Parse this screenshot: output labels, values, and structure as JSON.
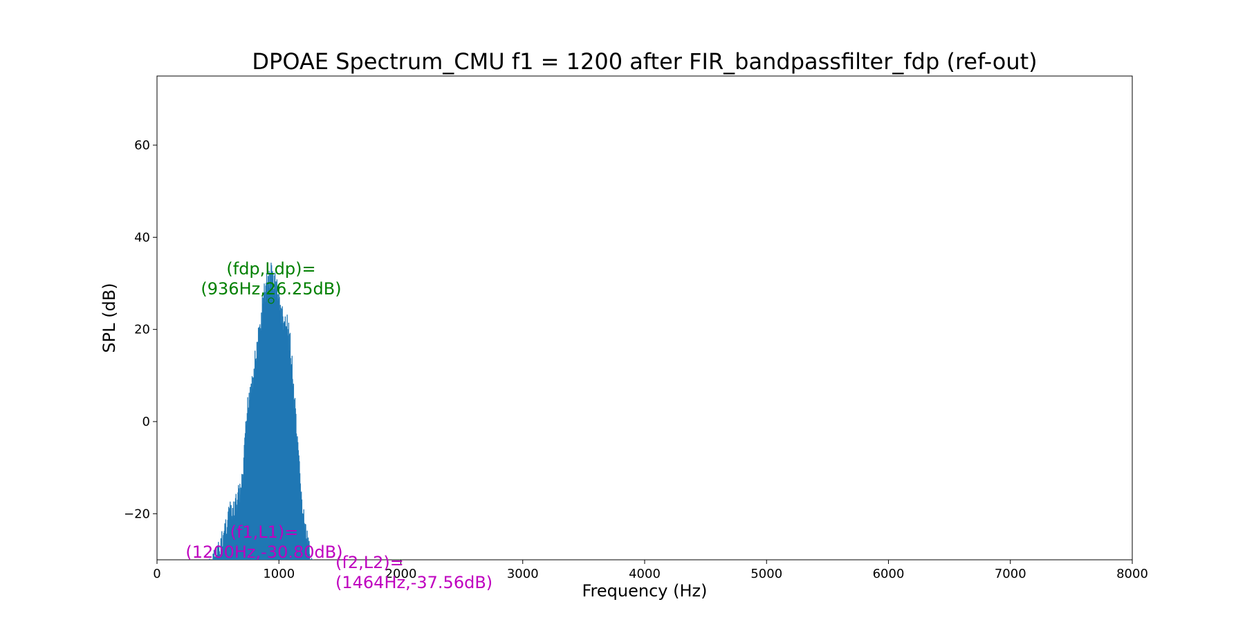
{
  "chart_data": {
    "type": "line",
    "title": "DPOAE Spectrum_CMU f1 = 1200 after FIR_bandpassfilter_fdp (ref-out)",
    "xlabel": "Frequency (Hz)",
    "ylabel": "SPL (dB)",
    "xlim": [
      0,
      8000
    ],
    "ylim": [
      -30,
      75
    ],
    "x_ticks": [
      0,
      1000,
      2000,
      3000,
      4000,
      5000,
      6000,
      7000,
      8000
    ],
    "x_tick_labels": [
      "0",
      "1000",
      "2000",
      "3000",
      "4000",
      "5000",
      "6000",
      "7000",
      "8000"
    ],
    "y_ticks": [
      -20,
      0,
      20,
      40,
      60
    ],
    "y_tick_labels": [
      "−20",
      "0",
      "20",
      "40",
      "60"
    ],
    "grid": false,
    "series": [
      {
        "color": "#1f77b4",
        "envelope": [
          [
            420,
            -30
          ],
          [
            470,
            -27
          ],
          [
            520,
            -25
          ],
          [
            560,
            -20
          ],
          [
            590,
            -17
          ],
          [
            620,
            -18
          ],
          [
            660,
            -14
          ],
          [
            700,
            -11
          ],
          [
            740,
            5
          ],
          [
            760,
            10
          ],
          [
            800,
            15
          ],
          [
            840,
            22
          ],
          [
            870,
            29
          ],
          [
            900,
            33
          ],
          [
            936,
            35
          ],
          [
            970,
            33
          ],
          [
            1000,
            30
          ],
          [
            1030,
            25
          ],
          [
            1060,
            24
          ],
          [
            1090,
            21
          ],
          [
            1120,
            10
          ],
          [
            1150,
            -2
          ],
          [
            1180,
            -12
          ],
          [
            1210,
            -20
          ],
          [
            1240,
            -25
          ],
          [
            1270,
            -28
          ],
          [
            1300,
            -30
          ]
        ],
        "sample_step_hz": 4
      }
    ],
    "annotations": [
      {
        "lines": [
          "(fdp,Ldp)=",
          "(936Hz,26.25dB)"
        ],
        "point": [
          936,
          26.25
        ],
        "color": "#008000",
        "marker": "o"
      },
      {
        "lines": [
          "(f1,L1)=",
          "(1200Hz,-30.80dB)"
        ],
        "point": [
          1200,
          -30.8
        ],
        "color": "#bf00bf"
      },
      {
        "lines": [
          "(f2,L2)=",
          "(1464Hz,-37.56dB)"
        ],
        "point": [
          1464,
          -37.56
        ],
        "color": "#bf00bf"
      }
    ]
  }
}
